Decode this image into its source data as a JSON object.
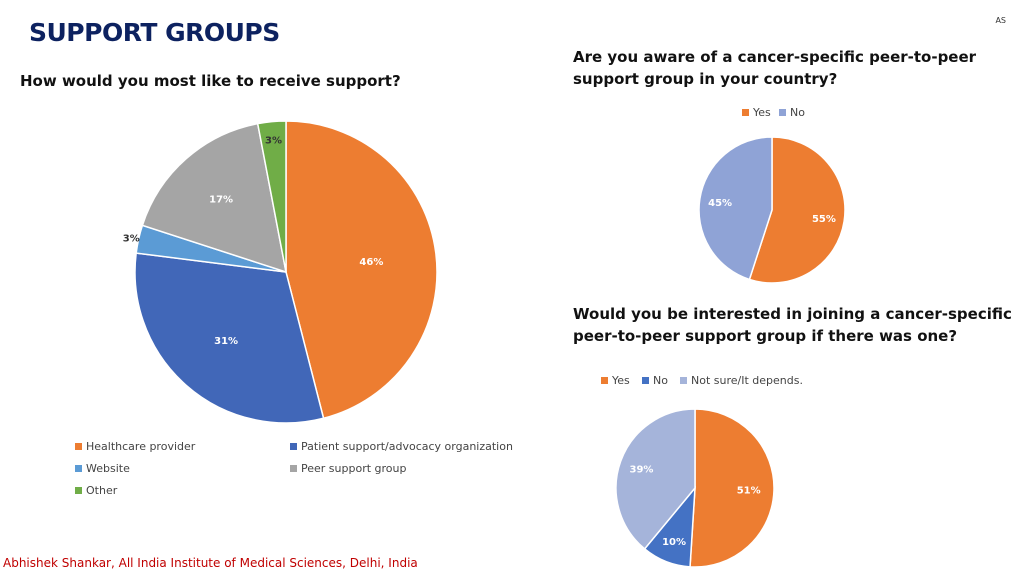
{
  "slide": {
    "title": "SUPPORT GROUPS",
    "initials": "AS",
    "footer": "Abhishek Shankar, All India Institute of Medical Sciences, Delhi, India"
  },
  "chart_data": [
    {
      "type": "pie",
      "title": "How would you most like to receive support?",
      "legend_position": "bottom",
      "categories": [
        "Healthcare provider",
        "Patient support/advocacy organization",
        "Website",
        "Peer support group",
        "Other"
      ],
      "values": [
        46,
        31,
        3,
        17,
        3
      ],
      "labels": [
        "46%",
        "31%",
        "3%",
        "17%",
        "3%"
      ],
      "colors": [
        "#ed7d31",
        "#4167b8",
        "#5b9bd5",
        "#a5a5a5",
        "#70ad47"
      ],
      "label_colors": [
        "#ffffff",
        "#ffffff",
        "#333333",
        "#ffffff",
        "#333333"
      ]
    },
    {
      "type": "pie",
      "title": "Are you aware of a cancer-specific peer-to-peer support group in your country?",
      "legend_position": "top",
      "categories": [
        "Yes",
        "No"
      ],
      "values": [
        55,
        45
      ],
      "labels": [
        "55%",
        "45%"
      ],
      "colors": [
        "#ed7d31",
        "#8fa3d6"
      ],
      "label_colors": [
        "#ffffff",
        "#ffffff"
      ]
    },
    {
      "type": "pie",
      "title": "Would you be interested in joining a cancer-specific peer-to-peer support group if there was one?",
      "legend_position": "top",
      "categories": [
        "Yes",
        "No",
        "Not sure/It depends."
      ],
      "values": [
        51,
        10,
        39
      ],
      "labels": [
        "51%",
        "10%",
        "39%"
      ],
      "colors": [
        "#ed7d31",
        "#4472c4",
        "#a5b4da"
      ],
      "label_colors": [
        "#ffffff",
        "#ffffff",
        "#ffffff"
      ]
    }
  ]
}
